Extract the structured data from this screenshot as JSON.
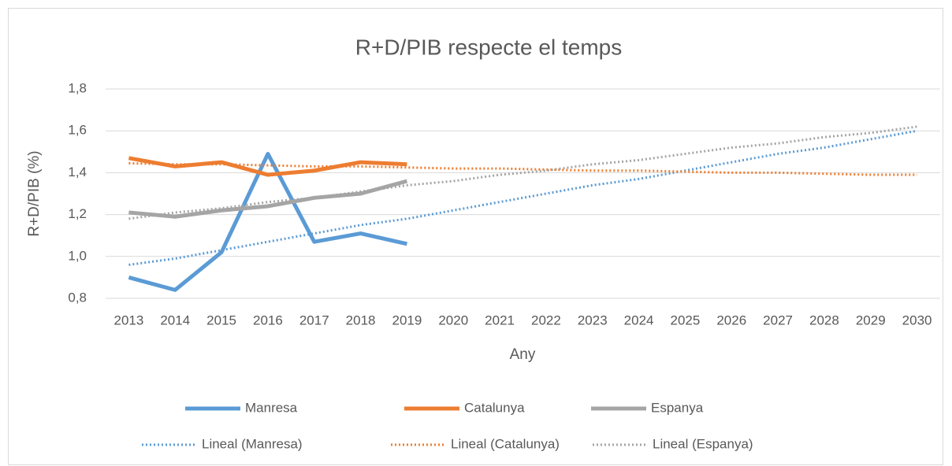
{
  "chart_data": {
    "type": "line",
    "title": "R+D/PIB respecte el temps",
    "x_label": "Any",
    "y_label": "R+D/PIB (%)",
    "categories": [
      "2013",
      "2014",
      "2015",
      "2016",
      "2017",
      "2018",
      "2019",
      "2020",
      "2021",
      "2022",
      "2023",
      "2024",
      "2025",
      "2026",
      "2027",
      "2028",
      "2029",
      "2030"
    ],
    "series": [
      {
        "name": "Manresa",
        "color": "#5b9bd5",
        "dash": "solid",
        "values": [
          0.9,
          0.84,
          1.02,
          1.49,
          1.07,
          1.11,
          1.06,
          null,
          null,
          null,
          null,
          null,
          null,
          null,
          null,
          null,
          null,
          null
        ]
      },
      {
        "name": "Catalunya",
        "color": "#ed7d31",
        "dash": "solid",
        "values": [
          1.47,
          1.43,
          1.45,
          1.39,
          1.41,
          1.45,
          1.44,
          null,
          null,
          null,
          null,
          null,
          null,
          null,
          null,
          null,
          null,
          null
        ]
      },
      {
        "name": "Espanya",
        "color": "#a5a5a5",
        "dash": "solid",
        "values": [
          1.21,
          1.19,
          1.22,
          1.24,
          1.28,
          1.3,
          1.36,
          null,
          null,
          null,
          null,
          null,
          null,
          null,
          null,
          null,
          null,
          null
        ]
      },
      {
        "name": "Lineal (Manresa)",
        "color": "#5b9bd5",
        "dash": "dotted",
        "values": [
          0.96,
          0.99,
          1.03,
          1.07,
          1.11,
          1.15,
          1.18,
          1.22,
          1.26,
          1.3,
          1.34,
          1.37,
          1.41,
          1.45,
          1.49,
          1.52,
          1.56,
          1.6
        ]
      },
      {
        "name": "Lineal (Catalunya)",
        "color": "#ed7d31",
        "dash": "dotted",
        "values": [
          1.445,
          1.44,
          1.44,
          1.435,
          1.43,
          1.43,
          1.425,
          1.42,
          1.42,
          1.415,
          1.41,
          1.41,
          1.405,
          1.4,
          1.4,
          1.395,
          1.39,
          1.39
        ]
      },
      {
        "name": "Lineal (Espanya)",
        "color": "#a5a5a5",
        "dash": "dotted",
        "values": [
          1.18,
          1.21,
          1.23,
          1.26,
          1.28,
          1.31,
          1.34,
          1.36,
          1.39,
          1.41,
          1.44,
          1.46,
          1.49,
          1.52,
          1.54,
          1.57,
          1.59,
          1.62
        ]
      }
    ],
    "ylim": [
      0.8,
      1.8
    ],
    "yticks": [
      {
        "value": 0.8,
        "label": "0,8"
      },
      {
        "value": 1.0,
        "label": "1,0"
      },
      {
        "value": 1.2,
        "label": "1,2"
      },
      {
        "value": 1.4,
        "label": "1,4"
      },
      {
        "value": 1.6,
        "label": "1,6"
      },
      {
        "value": 1.8,
        "label": "1,8"
      }
    ],
    "grid": true,
    "legend": "bottom"
  }
}
